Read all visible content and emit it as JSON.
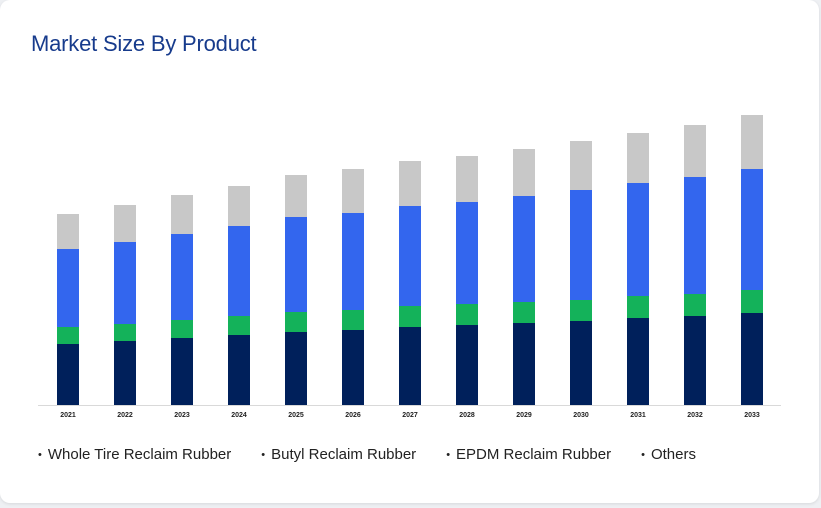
{
  "title": "Market Size By Product",
  "chart_data": {
    "type": "bar",
    "stacked": true,
    "title": "Market Size By Product",
    "categories": [
      "2021",
      "2022",
      "2023",
      "2024",
      "2025",
      "2026",
      "2027",
      "2028",
      "2029",
      "2030",
      "2031",
      "2032",
      "2033"
    ],
    "series": [
      {
        "name": "Whole Tire Reclaim Rubber",
        "color": "#00205b",
        "values": [
          61,
          64,
          67,
          70,
          73,
          75,
          78,
          80,
          82,
          84,
          87,
          89,
          92
        ]
      },
      {
        "name": "Butyl Reclaim Rubber",
        "color": "#14b25a",
        "values": [
          17,
          17,
          18,
          19,
          20,
          20,
          21,
          21,
          21,
          21,
          22,
          22,
          23
        ]
      },
      {
        "name": "EPDM Reclaim Rubber",
        "color": "#3366ee",
        "values": [
          78,
          82,
          86,
          90,
          95,
          97,
          100,
          102,
          106,
          110,
          113,
          117,
          121
        ]
      },
      {
        "name": "Others",
        "color": "#c8c8c8",
        "values": [
          35,
          37,
          39,
          40,
          42,
          44,
          45,
          46,
          47,
          49,
          50,
          52,
          54
        ]
      }
    ],
    "ylim": [
      0,
      300
    ],
    "grid": false,
    "legend_position": "bottom"
  }
}
